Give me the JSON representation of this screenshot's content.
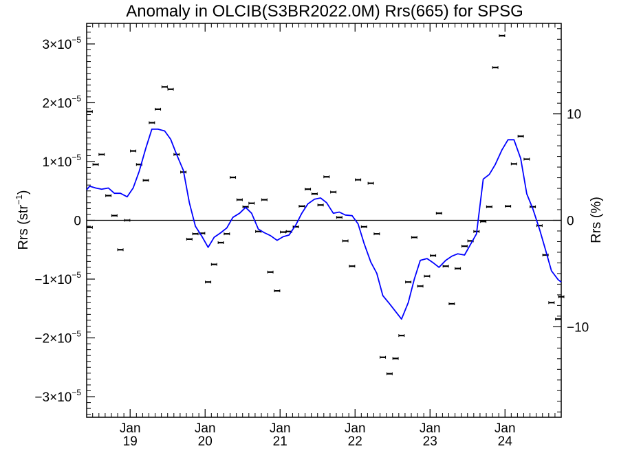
{
  "chart_data": {
    "type": "line",
    "title": "Anomaly in OLCIB(S3BR2022.0M) Rrs(665) for SPSG",
    "ylabel_left": "Rrs (str⁻¹)",
    "ylabel_right": "Rrs (%)",
    "xlabel": "",
    "xlim": [
      2018.42,
      2024.75
    ],
    "ylim_left": [
      -3.35e-05,
      3.35e-05
    ],
    "ylim_right": [
      -18.5,
      18.5
    ],
    "x_ticks": [
      {
        "x": 2019.0,
        "line1": "Jan",
        "line2": "19"
      },
      {
        "x": 2020.0,
        "line1": "Jan",
        "line2": "20"
      },
      {
        "x": 2021.0,
        "line1": "Jan",
        "line2": "21"
      },
      {
        "x": 2022.0,
        "line1": "Jan",
        "line2": "22"
      },
      {
        "x": 2023.0,
        "line1": "Jan",
        "line2": "23"
      },
      {
        "x": 2024.0,
        "line1": "Jan",
        "line2": "24"
      }
    ],
    "y_ticks_left": [
      {
        "v": 3e-05,
        "mant": "3×10",
        "exp": "−5"
      },
      {
        "v": 2e-05,
        "mant": "2×10",
        "exp": "−5"
      },
      {
        "v": 1e-05,
        "mant": "1×10",
        "exp": "−5"
      },
      {
        "v": 0,
        "mant": "0",
        "exp": ""
      },
      {
        "v": -1e-05,
        "mant": "−1×10",
        "exp": "−5"
      },
      {
        "v": -2e-05,
        "mant": "−2×10",
        "exp": "−5"
      },
      {
        "v": -3e-05,
        "mant": "−3×10",
        "exp": "−5"
      }
    ],
    "y_ticks_right": [
      {
        "v": 10,
        "label": "10"
      },
      {
        "v": 0,
        "label": "0"
      },
      {
        "v": -10,
        "label": "−10"
      }
    ],
    "zero_line": true,
    "grid": false,
    "series": [
      {
        "kind": "monthly_points_with_error_bars",
        "color": "#000000",
        "points": [
          [
            2018.46,
            1.85e-05
          ],
          [
            2018.46,
            -1.2e-06
          ],
          [
            2018.54,
            9.5e-06
          ],
          [
            2018.62,
            1.12e-05
          ],
          [
            2018.71,
            4.2e-06
          ],
          [
            2018.79,
            8e-07
          ],
          [
            2018.87,
            -5e-06
          ],
          [
            2018.96,
            0.0
          ],
          [
            2019.04,
            1.18e-05
          ],
          [
            2019.12,
            9.5e-06
          ],
          [
            2019.21,
            6.8e-06
          ],
          [
            2019.29,
            1.66e-05
          ],
          [
            2019.37,
            1.89e-05
          ],
          [
            2019.46,
            2.27e-05
          ],
          [
            2019.54,
            2.23e-05
          ],
          [
            2019.62,
            1.12e-05
          ],
          [
            2019.71,
            8.2e-06
          ],
          [
            2019.79,
            -3.2e-06
          ],
          [
            2019.87,
            -2.3e-06
          ],
          [
            2019.96,
            -2.2e-06
          ],
          [
            2020.04,
            -1.05e-05
          ],
          [
            2020.12,
            -7.5e-06
          ],
          [
            2020.21,
            -3.8e-06
          ],
          [
            2020.29,
            -2.3e-06
          ],
          [
            2020.37,
            7.3e-06
          ],
          [
            2020.46,
            3.5e-06
          ],
          [
            2020.54,
            2.3e-06
          ],
          [
            2020.62,
            2.9e-06
          ],
          [
            2020.71,
            -1.9e-06
          ],
          [
            2020.79,
            3.5e-06
          ],
          [
            2020.87,
            -8.8e-06
          ],
          [
            2020.96,
            -1.2e-05
          ],
          [
            2021.04,
            -2e-06
          ],
          [
            2021.12,
            -1.9e-06
          ],
          [
            2021.21,
            -1.1e-06
          ],
          [
            2021.29,
            2.4e-06
          ],
          [
            2021.37,
            5.3e-06
          ],
          [
            2021.46,
            4.5e-06
          ],
          [
            2021.54,
            2.6e-06
          ],
          [
            2021.62,
            7.4e-06
          ],
          [
            2021.71,
            4.8e-06
          ],
          [
            2021.79,
            5e-07
          ],
          [
            2021.87,
            -3.5e-06
          ],
          [
            2021.96,
            -7.8e-06
          ],
          [
            2022.04,
            6.9e-06
          ],
          [
            2022.12,
            -1.1e-06
          ],
          [
            2022.21,
            6.3e-06
          ],
          [
            2022.29,
            -2.3e-06
          ],
          [
            2022.37,
            -2.33e-05
          ],
          [
            2022.46,
            -2.61e-05
          ],
          [
            2022.54,
            -2.35e-05
          ],
          [
            2022.62,
            -1.96e-05
          ],
          [
            2022.71,
            -1.05e-05
          ],
          [
            2022.79,
            -2.9e-06
          ],
          [
            2022.87,
            -1.12e-05
          ],
          [
            2022.96,
            -9.5e-06
          ],
          [
            2023.04,
            -6e-06
          ],
          [
            2023.12,
            1.2e-06
          ],
          [
            2023.21,
            -7.8e-06
          ],
          [
            2023.29,
            -1.42e-05
          ],
          [
            2023.37,
            -8.2e-06
          ],
          [
            2023.46,
            -4.4e-06
          ],
          [
            2023.54,
            -3.5e-06
          ],
          [
            2023.62,
            -1.9e-06
          ],
          [
            2023.71,
            -2e-07
          ],
          [
            2023.79,
            2.3e-06
          ],
          [
            2023.87,
            2.6e-05
          ],
          [
            2023.96,
            3.14e-05
          ],
          [
            2024.04,
            2.4e-06
          ],
          [
            2024.12,
            9.6e-06
          ],
          [
            2024.21,
            1.43e-05
          ],
          [
            2024.29,
            1.04e-05
          ],
          [
            2024.37,
            2.3e-06
          ],
          [
            2024.46,
            -9e-07
          ],
          [
            2024.54,
            -5.9e-06
          ],
          [
            2024.62,
            -1.4e-05
          ],
          [
            2024.71,
            -1.68e-05
          ],
          [
            2024.75,
            -1.3e-05
          ]
        ]
      },
      {
        "kind": "smoothed_line",
        "color": "#0000ff",
        "points": [
          [
            2018.42,
            5.2e-06
          ],
          [
            2018.46,
            5.8e-06
          ],
          [
            2018.54,
            5.5e-06
          ],
          [
            2018.62,
            5.3e-06
          ],
          [
            2018.71,
            5.5e-06
          ],
          [
            2018.79,
            4.6e-06
          ],
          [
            2018.87,
            4.6e-06
          ],
          [
            2018.96,
            4e-06
          ],
          [
            2019.04,
            5.5e-06
          ],
          [
            2019.12,
            8.3e-06
          ],
          [
            2019.21,
            1.23e-05
          ],
          [
            2019.29,
            1.55e-05
          ],
          [
            2019.37,
            1.55e-05
          ],
          [
            2019.46,
            1.52e-05
          ],
          [
            2019.54,
            1.38e-05
          ],
          [
            2019.62,
            1.12e-05
          ],
          [
            2019.71,
            8.5e-06
          ],
          [
            2019.79,
            3e-06
          ],
          [
            2019.87,
            -1e-06
          ],
          [
            2019.96,
            -2.8e-06
          ],
          [
            2020.04,
            -4.6e-06
          ],
          [
            2020.12,
            -2.9e-06
          ],
          [
            2020.21,
            -2.1e-06
          ],
          [
            2020.29,
            -1.3e-06
          ],
          [
            2020.37,
            5e-07
          ],
          [
            2020.46,
            1.2e-06
          ],
          [
            2020.54,
            2.2e-06
          ],
          [
            2020.62,
            1.2e-06
          ],
          [
            2020.71,
            -1.5e-06
          ],
          [
            2020.79,
            -2.1e-06
          ],
          [
            2020.87,
            -2.6e-06
          ],
          [
            2020.96,
            -3.4e-06
          ],
          [
            2021.04,
            -2.8e-06
          ],
          [
            2021.12,
            -2.5e-06
          ],
          [
            2021.21,
            -8e-07
          ],
          [
            2021.29,
            1.2e-06
          ],
          [
            2021.37,
            2.8e-06
          ],
          [
            2021.46,
            3.6e-06
          ],
          [
            2021.54,
            3.8e-06
          ],
          [
            2021.62,
            3e-06
          ],
          [
            2021.71,
            1.2e-06
          ],
          [
            2021.79,
            1.4e-06
          ],
          [
            2021.87,
            9e-07
          ],
          [
            2021.96,
            8e-07
          ],
          [
            2022.04,
            -6e-07
          ],
          [
            2022.12,
            -3.9e-06
          ],
          [
            2022.21,
            -7.1e-06
          ],
          [
            2022.29,
            -9e-06
          ],
          [
            2022.37,
            -1.28e-05
          ],
          [
            2022.46,
            -1.42e-05
          ],
          [
            2022.54,
            -1.55e-05
          ],
          [
            2022.62,
            -1.68e-05
          ],
          [
            2022.71,
            -1.4e-05
          ],
          [
            2022.79,
            -1e-05
          ],
          [
            2022.87,
            -6.8e-06
          ],
          [
            2022.96,
            -6.5e-06
          ],
          [
            2023.04,
            -7.2e-06
          ],
          [
            2023.12,
            -8e-06
          ],
          [
            2023.21,
            -6.8e-06
          ],
          [
            2023.29,
            -6.1e-06
          ],
          [
            2023.37,
            -5.7e-06
          ],
          [
            2023.46,
            -5.9e-06
          ],
          [
            2023.54,
            -4.1e-06
          ],
          [
            2023.62,
            -2.3e-06
          ],
          [
            2023.71,
            7e-06
          ],
          [
            2023.79,
            7.8e-06
          ],
          [
            2023.87,
            9.5e-06
          ],
          [
            2023.96,
            1.2e-05
          ],
          [
            2024.04,
            1.37e-05
          ],
          [
            2024.12,
            1.37e-05
          ],
          [
            2024.21,
            1.05e-05
          ],
          [
            2024.29,
            4.5e-06
          ],
          [
            2024.37,
            2e-06
          ],
          [
            2024.46,
            -1.5e-06
          ],
          [
            2024.54,
            -5e-06
          ],
          [
            2024.62,
            -8.6e-06
          ],
          [
            2024.71,
            -1.01e-05
          ],
          [
            2024.75,
            -1.05e-05
          ]
        ]
      }
    ]
  }
}
